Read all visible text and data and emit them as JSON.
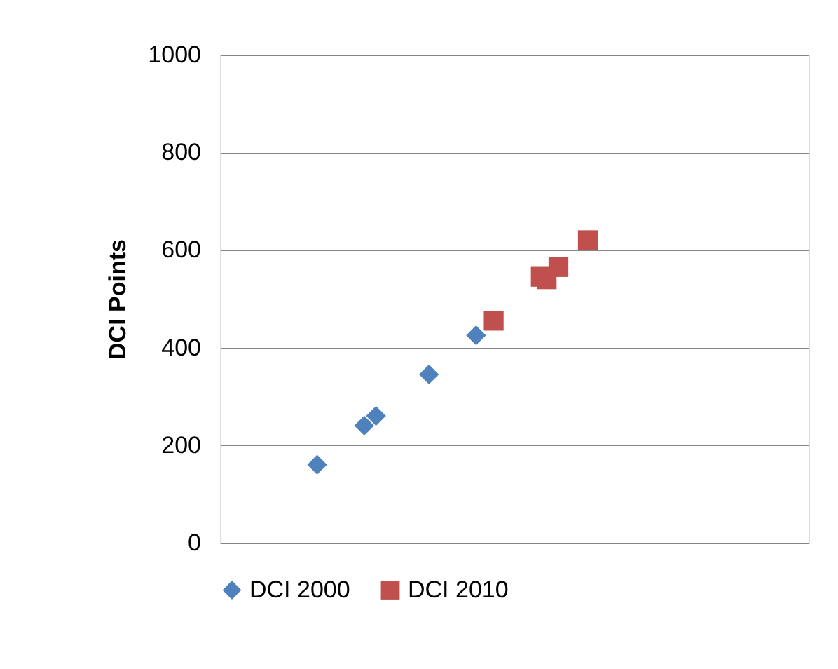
{
  "chart_data": {
    "type": "scatter",
    "ylabel": "DCI Points",
    "categories": [
      null,
      null,
      null,
      null,
      null,
      null,
      null,
      null,
      null,
      null,
      null,
      null,
      null,
      null,
      null,
      null,
      null,
      null,
      null,
      null,
      null,
      null,
      null,
      null,
      null,
      null,
      null,
      null,
      null,
      null,
      null,
      null,
      null,
      null,
      null,
      null,
      null,
      null,
      null,
      null,
      null,
      null,
      null,
      null,
      null,
      null,
      null,
      null,
      null,
      null,
      null,
      null,
      null,
      null,
      null,
      null,
      null,
      null,
      null,
      null,
      null,
      null,
      null,
      null,
      null,
      null,
      null,
      null,
      null,
      null,
      null,
      null,
      null,
      null,
      null,
      null,
      null,
      null,
      null,
      null,
      null,
      null,
      null,
      null,
      null,
      null,
      null,
      null,
      null,
      null,
      null,
      null,
      null,
      null,
      null,
      null,
      null,
      null,
      null,
      null
    ],
    "ylim": [
      0,
      1000
    ],
    "yticks": [
      0,
      200,
      400,
      600,
      800,
      1000
    ],
    "tick_labels": "y",
    "grid": "y",
    "legend": "bottom",
    "series": [
      {
        "name": "DCI 2000",
        "color": "#4f81bd",
        "marker": "diamond",
        "values": [
          null,
          null,
          null,
          null,
          null,
          null,
          null,
          null,
          null,
          null,
          null,
          null,
          null,
          null,
          null,
          null,
          160,
          null,
          null,
          null,
          null,
          null,
          null,
          null,
          240,
          null,
          260,
          null,
          null,
          null,
          null,
          null,
          null,
          null,
          null,
          345,
          null,
          null,
          null,
          null,
          null,
          null,
          null,
          425,
          null,
          null,
          null,
          null,
          null,
          null,
          null,
          null,
          null,
          null,
          null,
          null,
          null,
          null,
          null,
          null,
          null,
          null,
          null,
          null,
          null,
          null,
          null,
          null,
          null,
          null,
          null,
          null,
          null,
          null,
          null,
          null,
          null,
          null,
          null,
          null,
          null,
          null,
          null,
          null,
          null,
          null,
          null,
          null,
          null,
          null,
          null,
          null,
          null,
          null,
          null,
          null,
          null,
          null,
          null,
          null
        ]
      },
      {
        "name": "DCI 2010",
        "color": "#c0504d",
        "marker": "square",
        "values": [
          null,
          null,
          null,
          null,
          null,
          null,
          null,
          null,
          null,
          null,
          null,
          null,
          null,
          null,
          null,
          null,
          null,
          null,
          null,
          null,
          null,
          null,
          null,
          null,
          null,
          null,
          null,
          null,
          null,
          null,
          null,
          null,
          null,
          null,
          null,
          null,
          null,
          null,
          null,
          null,
          null,
          null,
          null,
          null,
          null,
          null,
          455,
          null,
          null,
          null,
          null,
          null,
          null,
          null,
          545,
          540,
          null,
          565,
          null,
          null,
          null,
          null,
          620,
          null,
          null,
          null,
          null,
          null,
          null,
          null,
          null,
          null,
          null,
          null,
          null,
          null,
          null,
          null,
          null,
          null,
          null,
          null,
          null,
          null,
          null,
          null,
          null,
          null,
          null,
          null,
          null,
          null,
          null,
          null,
          null,
          null,
          null,
          null,
          null,
          null
        ]
      }
    ]
  }
}
